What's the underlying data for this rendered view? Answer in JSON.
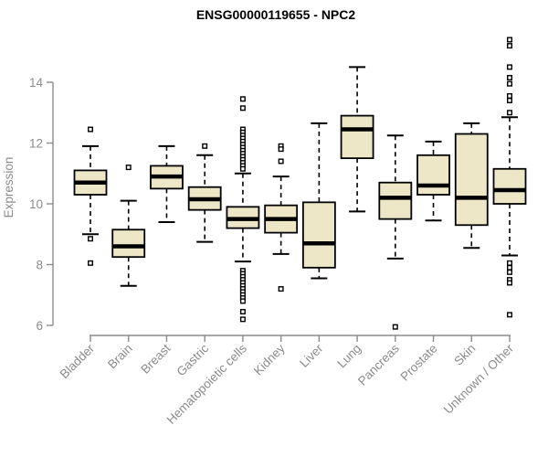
{
  "title": "ENSG00000119655 - NPC2",
  "colors": {
    "background": "#ffffff",
    "box_fill": "#ede7c8",
    "box_stroke": "#000000",
    "median_line": "#000000",
    "whisker": "#000000",
    "outlier_stroke": "#000000",
    "outlier_fill": "#ffffff",
    "axis_line": "#8b8b8b",
    "axis_text": "#8b8b8b",
    "title_text": "#000000"
  },
  "chart_data": {
    "type": "boxplot",
    "title": "ENSG00000119655 - NPC2",
    "xlabel": "",
    "ylabel": "Expression",
    "ylim": [
      5.7,
      15.7
    ],
    "yticks": [
      6,
      8,
      10,
      12,
      14
    ],
    "grid": false,
    "legend": "none",
    "categories": [
      "Bladder",
      "Brain",
      "Breast",
      "Gastric",
      "Hematopoietic cells",
      "Kidney",
      "Liver",
      "Lung",
      "Pancreas",
      "Prostate",
      "Skin",
      "Unknown / Other"
    ],
    "series": [
      {
        "name": "Bladder",
        "whisker_low": 9.0,
        "q1": 10.3,
        "median": 10.7,
        "q3": 11.1,
        "whisker_high": 11.9,
        "outliers": [
          12.45,
          8.85,
          8.05
        ]
      },
      {
        "name": "Brain",
        "whisker_low": 7.3,
        "q1": 8.25,
        "median": 8.6,
        "q3": 9.15,
        "whisker_high": 10.1,
        "outliers": [
          11.2
        ]
      },
      {
        "name": "Breast",
        "whisker_low": 9.4,
        "q1": 10.5,
        "median": 10.9,
        "q3": 11.25,
        "whisker_high": 11.9,
        "outliers": []
      },
      {
        "name": "Gastric",
        "whisker_low": 8.75,
        "q1": 9.8,
        "median": 10.15,
        "q3": 10.55,
        "whisker_high": 11.6,
        "outliers": [
          11.9
        ]
      },
      {
        "name": "Hematopoietic cells",
        "whisker_low": 8.1,
        "q1": 9.2,
        "median": 9.5,
        "q3": 9.9,
        "whisker_high": 11.0,
        "outliers": [
          13.45,
          13.15,
          12.45,
          12.35,
          12.25,
          12.15,
          12.05,
          11.95,
          11.85,
          11.75,
          11.65,
          11.55,
          11.45,
          11.35,
          11.25,
          11.15,
          7.8,
          7.7,
          7.6,
          7.5,
          7.4,
          7.3,
          7.2,
          7.1,
          7.0,
          6.9,
          6.8,
          6.45,
          6.2
        ]
      },
      {
        "name": "Kidney",
        "whisker_low": 8.35,
        "q1": 9.05,
        "median": 9.5,
        "q3": 9.95,
        "whisker_high": 10.9,
        "outliers": [
          11.9,
          11.8,
          11.4,
          7.2
        ]
      },
      {
        "name": "Liver",
        "whisker_low": 7.55,
        "q1": 7.9,
        "median": 8.7,
        "q3": 10.05,
        "whisker_high": 12.65,
        "outliers": []
      },
      {
        "name": "Lung",
        "whisker_low": 9.75,
        "q1": 11.5,
        "median": 12.45,
        "q3": 12.9,
        "whisker_high": 14.5,
        "outliers": []
      },
      {
        "name": "Pancreas",
        "whisker_low": 8.2,
        "q1": 9.5,
        "median": 10.2,
        "q3": 10.7,
        "whisker_high": 12.25,
        "outliers": [
          5.95
        ]
      },
      {
        "name": "Prostate",
        "whisker_low": 9.45,
        "q1": 10.3,
        "median": 10.6,
        "q3": 11.6,
        "whisker_high": 12.05,
        "outliers": []
      },
      {
        "name": "Skin",
        "whisker_low": 8.55,
        "q1": 9.3,
        "median": 10.2,
        "q3": 12.3,
        "whisker_high": 12.65,
        "outliers": []
      },
      {
        "name": "Unknown / Other",
        "whisker_low": 8.3,
        "q1": 10.0,
        "median": 10.45,
        "q3": 11.15,
        "whisker_high": 12.85,
        "outliers": [
          15.4,
          15.2,
          14.5,
          14.15,
          13.95,
          13.55,
          13.4,
          13.0,
          8.05,
          7.9,
          7.75,
          7.5,
          7.4,
          6.35
        ]
      }
    ]
  }
}
